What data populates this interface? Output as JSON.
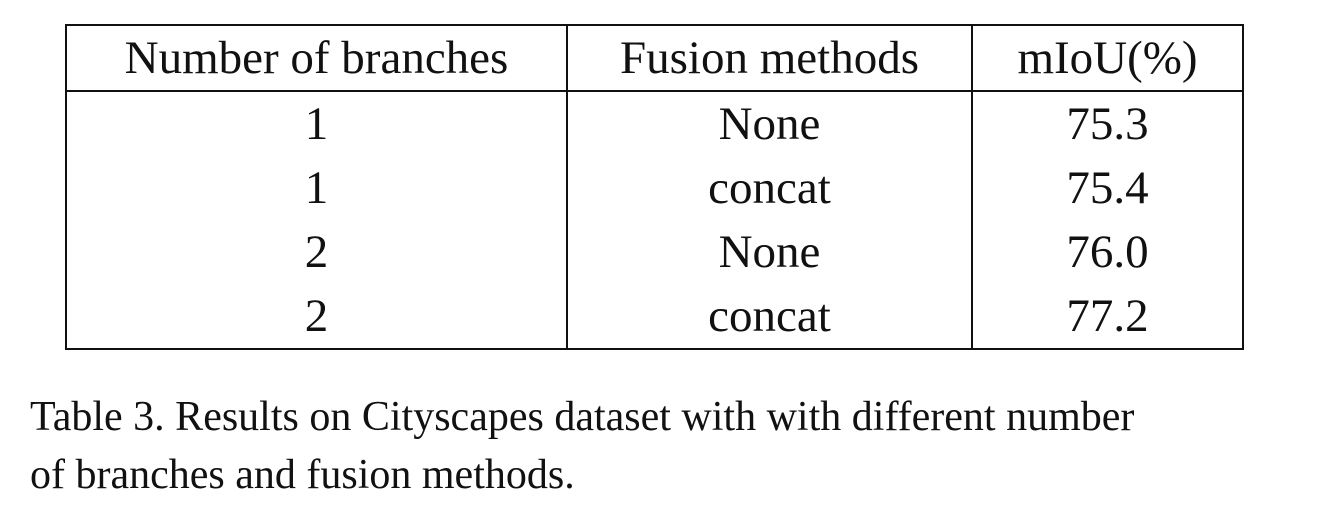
{
  "table": {
    "columns": [
      "Number of branches",
      "Fusion methods",
      "mIoU(%)"
    ],
    "rows": [
      [
        "1",
        "None",
        "75.3"
      ],
      [
        "1",
        "concat",
        "75.4"
      ],
      [
        "2",
        "None",
        "76.0"
      ],
      [
        "2",
        "concat",
        "77.2"
      ]
    ]
  },
  "caption": {
    "line1": "Table 3. Results on Cityscapes dataset with with different number",
    "line2": "of branches and fusion methods."
  }
}
